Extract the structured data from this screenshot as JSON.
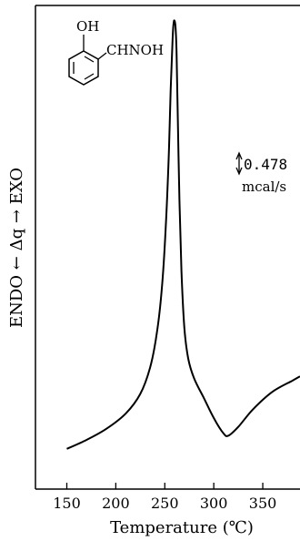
{
  "chart_data": {
    "type": "line",
    "xlabel": "Temperature (℃)",
    "ylabel": "ENDO ← Δq → EXO",
    "xlim": [
      118,
      388
    ],
    "x_ticks": [
      150,
      200,
      250,
      300,
      350
    ],
    "x_tick_labels": [
      "150",
      "200",
      "250",
      "300",
      "350"
    ],
    "ylim": [
      0,
      1
    ],
    "grid": false,
    "scale_bar": {
      "line1": "0.478",
      "line2": "mcal/s"
    },
    "molecule": {
      "oh_label": "OH",
      "side_chain_label": "CHNOH"
    },
    "series": [
      {
        "x": [
          150,
          170,
          190,
          210,
          225,
          235,
          242,
          247,
          251,
          254,
          256,
          258,
          259,
          260,
          261,
          262,
          263,
          265,
          267,
          270,
          274,
          280,
          290,
          300,
          310,
          315,
          325,
          340,
          360,
          380,
          388
        ],
        "y": [
          0.015,
          0.035,
          0.06,
          0.095,
          0.14,
          0.2,
          0.28,
          0.38,
          0.52,
          0.68,
          0.83,
          0.95,
          0.985,
          0.99,
          0.975,
          0.92,
          0.8,
          0.58,
          0.42,
          0.29,
          0.22,
          0.175,
          0.13,
          0.085,
          0.05,
          0.045,
          0.065,
          0.105,
          0.145,
          0.17,
          0.18
        ]
      }
    ]
  }
}
